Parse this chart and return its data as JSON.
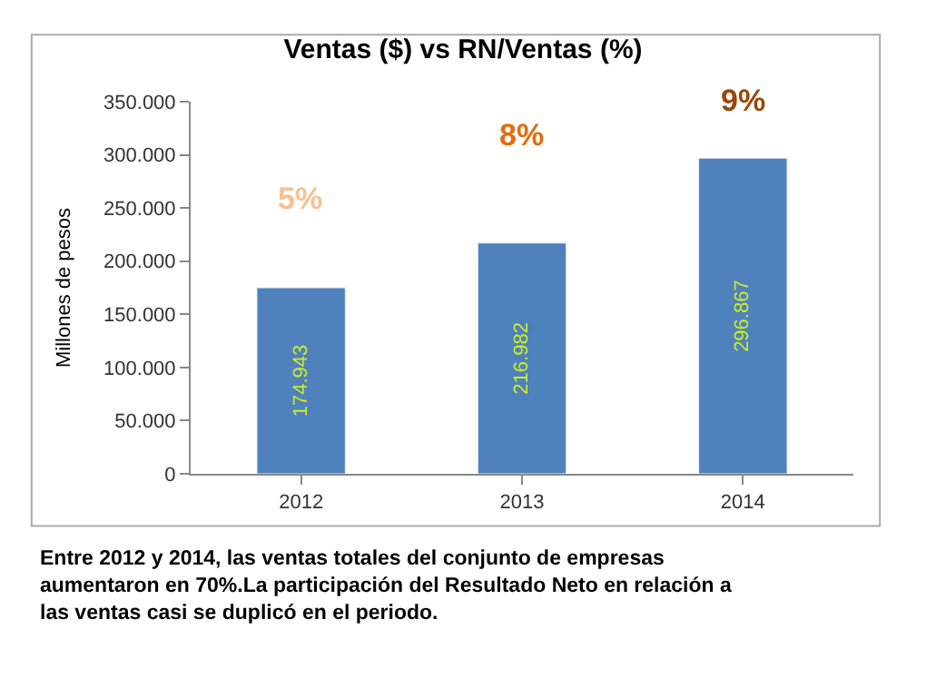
{
  "chart_data": {
    "type": "bar",
    "title": "Ventas ($) vs RN/Ventas (%)",
    "ylabel": "Millones de pesos",
    "categories": [
      "2012",
      "2013",
      "2014"
    ],
    "values": [
      174943,
      216982,
      296867
    ],
    "color": "#4f81bd",
    "value_labels": [
      "174.943",
      "216.982",
      "296.867"
    ],
    "ylim": [
      0,
      350000
    ],
    "yticks": [
      {
        "value": 0,
        "label": "0"
      },
      {
        "value": 50000,
        "label": "50.000"
      },
      {
        "value": 100000,
        "label": "100.000"
      },
      {
        "value": 150000,
        "label": "150.000"
      },
      {
        "value": 200000,
        "label": "200.000"
      },
      {
        "value": 250000,
        "label": "250.000"
      },
      {
        "value": 300000,
        "label": "300.000"
      },
      {
        "value": 350000,
        "label": "350.000"
      }
    ],
    "legend": false,
    "annotations": [
      "5%",
      "8%",
      "9%",
      "Entre 2012 y 2014, las ventas totales del conjunto de empresas aumentaron en 70%.La participación del Resultado Neto en relación a las ventas casi se duplicó en el periodo."
    ]
  }
}
